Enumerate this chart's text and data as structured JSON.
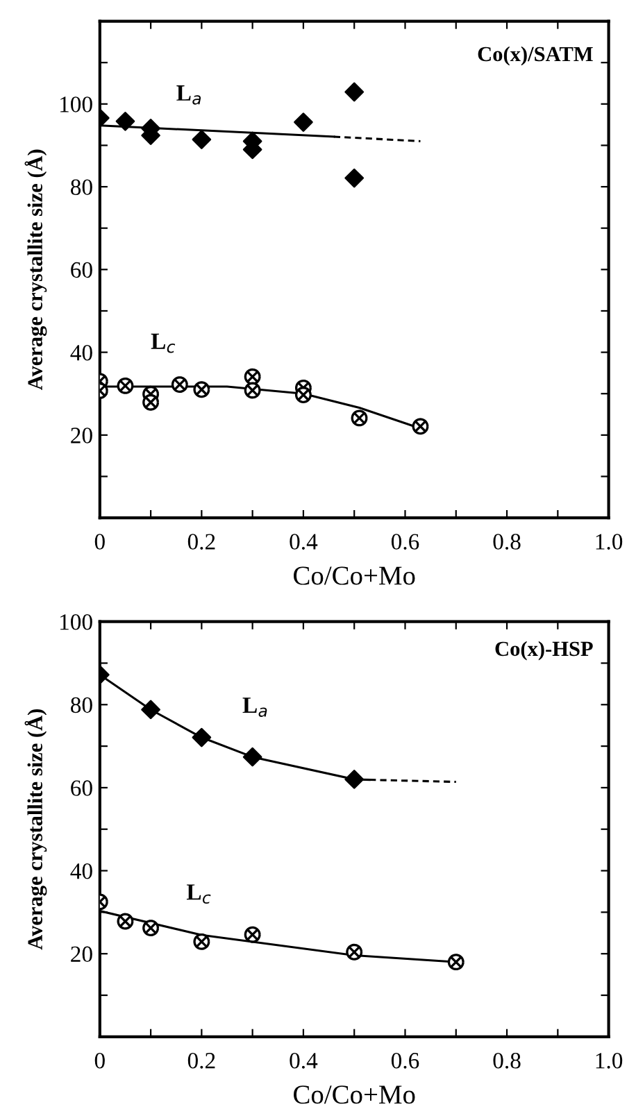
{
  "chart_data": [
    {
      "type": "scatter",
      "title": "Co(x)/SATM",
      "xlabel": "Co/Co+Mo",
      "ylabel": "Average crystallite size (Å)",
      "xlim": [
        0,
        1.0
      ],
      "ylim": [
        0,
        120
      ],
      "xticks": [
        0,
        {
          "value": 0.1,
          "label": null
        },
        0.2,
        {
          "value": 0.3,
          "label": null
        },
        0.4,
        {
          "value": 0.5,
          "label": null
        },
        0.6,
        {
          "value": 0.7,
          "label": null
        },
        0.8,
        {
          "value": 0.9,
          "label": null
        },
        "1.0"
      ],
      "yticks": [
        {
          "value": 10,
          "label": null
        },
        20,
        {
          "value": 30,
          "label": null
        },
        40,
        {
          "value": 50,
          "label": null
        },
        60,
        {
          "value": 70,
          "label": null
        },
        80,
        {
          "value": 90,
          "label": null
        },
        100,
        {
          "value": 110,
          "label": null
        }
      ],
      "grid": false,
      "legend": false,
      "annotations": [
        "L$_{a}$",
        "L$_{c}$"
      ],
      "series": [
        {
          "marker": "diamond",
          "color": "#000000",
          "x": [
            0,
            0.05,
            0.1,
            0.1,
            0.2,
            0.3,
            0.3,
            0.4,
            0.5,
            0.5
          ],
          "values": [
            96.6,
            95.8,
            94.1,
            92.4,
            91.4,
            91,
            89,
            95.6,
            102.9,
            82.1
          ]
        },
        {
          "type": "line",
          "marker": "none",
          "line_style": "solid",
          "color": "#000000",
          "x": [
            0,
            0.46
          ],
          "values": [
            94.8,
            92.1
          ]
        },
        {
          "type": "line",
          "marker": "none",
          "line_style": "dashed",
          "color": "#000000",
          "x": [
            0.46,
            0.63
          ],
          "values": [
            92.1,
            91
          ]
        },
        {
          "marker": "cross",
          "color": "#000000",
          "x": [
            0,
            0,
            0.05,
            0.1,
            0.1,
            0.157,
            0.2,
            0.3,
            0.3,
            0.4,
            0.4,
            0.51,
            0.63
          ],
          "values": [
            33,
            30.7,
            31.9,
            29.9,
            27.9,
            32.2,
            31,
            34.1,
            30.8,
            31.4,
            29.7,
            24.1,
            22.1
          ]
        },
        {
          "type": "line",
          "marker": "none",
          "line_style": "solid",
          "color": "#000000",
          "x": [
            0,
            0.25,
            0.4,
            0.51,
            0.63
          ],
          "values": [
            31.7,
            31.7,
            30,
            26.6,
            21.6
          ]
        }
      ]
    },
    {
      "type": "scatter",
      "title": "Co(x)-HSP",
      "xlabel": "Co/Co+Mo",
      "ylabel": "Average crystallite size (Å)",
      "xlim": [
        0,
        1.0
      ],
      "ylim": [
        0,
        100
      ],
      "xticks": [
        0,
        {
          "value": 0.1,
          "label": null
        },
        0.2,
        {
          "value": 0.3,
          "label": null
        },
        0.4,
        {
          "value": 0.5,
          "label": null
        },
        0.6,
        {
          "value": 0.7,
          "label": null
        },
        0.8,
        {
          "value": 0.9,
          "label": null
        },
        "1.0"
      ],
      "yticks": [
        {
          "value": 10,
          "label": null
        },
        20,
        {
          "value": 30,
          "label": null
        },
        40,
        {
          "value": 50,
          "label": null
        },
        60,
        {
          "value": 70,
          "label": null
        },
        80,
        {
          "value": 90,
          "label": null
        },
        100
      ],
      "grid": false,
      "legend": false,
      "annotations": [
        "L$_{a}$",
        "L$_{c}$"
      ],
      "series": [
        {
          "marker": "diamond",
          "color": "#000000",
          "x": [
            0,
            0.1,
            0.2,
            0.3,
            0.5
          ],
          "values": [
            87.2,
            78.8,
            72.1,
            67.4,
            62
          ]
        },
        {
          "type": "line",
          "marker": "none",
          "line_style": "solid",
          "color": "#000000",
          "x": [
            0,
            0.1,
            0.2,
            0.3,
            0.5,
            0.53
          ],
          "values": [
            87.2,
            78.8,
            72.1,
            67.4,
            62,
            61.9
          ]
        },
        {
          "type": "line",
          "marker": "none",
          "line_style": "dashed",
          "color": "#000000",
          "x": [
            0.53,
            0.7
          ],
          "values": [
            61.9,
            61.4
          ]
        },
        {
          "marker": "cross",
          "color": "#000000",
          "x": [
            0,
            0.05,
            0.1,
            0.2,
            0.3,
            0.5,
            0.7
          ],
          "values": [
            32.5,
            27.8,
            26.2,
            22.9,
            24.6,
            20.4,
            18
          ]
        },
        {
          "type": "line",
          "marker": "none",
          "line_style": "solid",
          "color": "#000000",
          "x": [
            0,
            0.2,
            0.5,
            0.7
          ],
          "values": [
            30.3,
            24.5,
            19.6,
            18
          ]
        }
      ]
    }
  ]
}
